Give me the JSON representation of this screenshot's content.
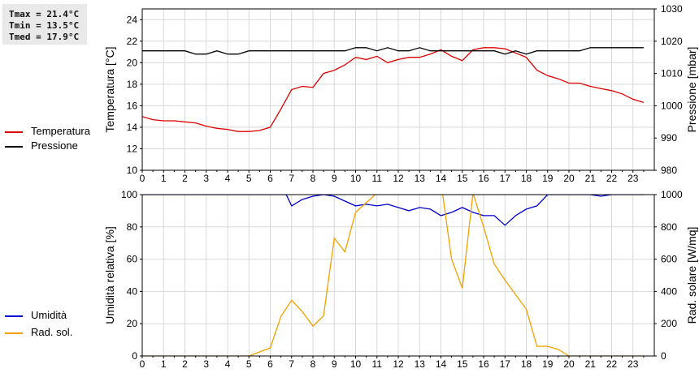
{
  "stats": {
    "tmax": "Tmax = 21.4°C",
    "tmin": "Tmin = 13.5°C",
    "tmed": "Tmed = 17.9°C"
  },
  "legend_top": [
    {
      "label": "Temperatura",
      "color": "#dd0000"
    },
    {
      "label": "Pressione",
      "color": "#000000"
    }
  ],
  "legend_bottom": [
    {
      "label": "Umidità",
      "color": "#0000cc"
    },
    {
      "label": "Rad. sol.",
      "color": "#f5a000"
    }
  ],
  "chart_data": [
    {
      "type": "line",
      "xlim": [
        0,
        24
      ],
      "x_ticks": [
        "0",
        "1",
        "2",
        "3",
        "4",
        "5",
        "6",
        "7",
        "8",
        "9",
        "10",
        "11",
        "12",
        "13",
        "14",
        "15",
        "16",
        "17",
        "18",
        "19",
        "20",
        "21",
        "22",
        "23"
      ],
      "ylabel_left": "Temperatura [°C]",
      "ylim_left": [
        10,
        25
      ],
      "yticks_left": [
        "10",
        "12",
        "14",
        "16",
        "18",
        "20",
        "22",
        "24"
      ],
      "ylabel_right": "Pressione [mbar]",
      "ylim_right": [
        980,
        1030
      ],
      "yticks_right": [
        "980",
        "990",
        "1000",
        "1010",
        "1020",
        "1030"
      ],
      "grid": true,
      "series": [
        {
          "name": "Temperatura",
          "axis": "left",
          "color": "#dd0000",
          "x": [
            0,
            0.5,
            1,
            1.5,
            2,
            2.5,
            3,
            3.5,
            4,
            4.5,
            5,
            5.5,
            6,
            6.5,
            7,
            7.5,
            8,
            8.5,
            9,
            9.5,
            10,
            10.5,
            11,
            11.5,
            12,
            12.5,
            13,
            13.5,
            14,
            14.5,
            15,
            15.5,
            16,
            16.5,
            17,
            17.5,
            18,
            18.5,
            19,
            19.5,
            20,
            20.5,
            21,
            21.5,
            22,
            22.5,
            23,
            23.5
          ],
          "y": [
            15.0,
            14.7,
            14.6,
            14.6,
            14.5,
            14.4,
            14.1,
            13.9,
            13.8,
            13.6,
            13.6,
            13.7,
            14.0,
            15.7,
            17.5,
            17.8,
            17.7,
            19.0,
            19.3,
            19.8,
            20.5,
            20.3,
            20.6,
            20.0,
            20.3,
            20.5,
            20.5,
            20.8,
            21.2,
            20.6,
            20.2,
            21.2,
            21.4,
            21.4,
            21.3,
            20.9,
            20.5,
            19.3,
            18.8,
            18.5,
            18.1,
            18.1,
            17.8,
            17.6,
            17.4,
            17.1,
            16.6,
            16.3
          ]
        },
        {
          "name": "Pressione",
          "axis": "right",
          "color": "#000000",
          "x": [
            0,
            0.5,
            1,
            1.5,
            2,
            2.5,
            3,
            3.5,
            4,
            4.5,
            5,
            5.5,
            6,
            6.5,
            7,
            7.5,
            8,
            8.5,
            9,
            9.5,
            10,
            10.5,
            11,
            11.5,
            12,
            12.5,
            13,
            13.5,
            14,
            14.5,
            15,
            15.5,
            16,
            16.5,
            17,
            17.5,
            18,
            18.5,
            19,
            19.5,
            20,
            20.5,
            21,
            21.5,
            22,
            22.5,
            23,
            23.5
          ],
          "y": [
            1017,
            1017,
            1017,
            1017,
            1017,
            1016,
            1016,
            1017,
            1016,
            1016,
            1017,
            1017,
            1017,
            1017,
            1017,
            1017,
            1017,
            1017,
            1017,
            1017,
            1018,
            1018,
            1017,
            1018,
            1017,
            1017,
            1018,
            1017,
            1017,
            1017,
            1017,
            1017,
            1017,
            1017,
            1016,
            1017,
            1016,
            1017,
            1017,
            1017,
            1017,
            1017,
            1018,
            1018,
            1018,
            1018,
            1018,
            1018
          ]
        }
      ]
    },
    {
      "type": "line",
      "xlim": [
        0,
        24
      ],
      "x_ticks": [
        "0",
        "1",
        "2",
        "3",
        "4",
        "5",
        "6",
        "7",
        "8",
        "9",
        "10",
        "11",
        "12",
        "13",
        "14",
        "15",
        "16",
        "17",
        "18",
        "19",
        "20",
        "21",
        "22",
        "23"
      ],
      "ylabel_left": "Umidità relativa [%]",
      "ylim_left": [
        0,
        100
      ],
      "yticks_left": [
        "0",
        "20",
        "40",
        "60",
        "80",
        "100"
      ],
      "ylabel_right": "Rad. solare [W/mq]",
      "ylim_right": [
        0,
        1000
      ],
      "yticks_right": [
        "0",
        "200",
        "400",
        "600",
        "800",
        "1000"
      ],
      "grid": true,
      "series": [
        {
          "name": "Umidità",
          "axis": "left",
          "color": "#0000cc",
          "x": [
            0,
            0.5,
            1,
            1.5,
            2,
            2.5,
            3,
            3.5,
            4,
            4.5,
            5,
            5.5,
            6,
            6.5,
            6.75,
            7,
            7.5,
            8,
            8.5,
            9,
            9.5,
            10,
            10.5,
            11,
            11.5,
            12,
            12.5,
            13,
            13.5,
            14,
            14.5,
            15,
            15.5,
            16,
            16.5,
            17,
            17.5,
            18,
            18.5,
            19,
            19.5,
            20,
            20.5,
            21,
            21.5,
            22,
            22.5,
            23,
            23.5
          ],
          "y": [
            100,
            100,
            100,
            100,
            100,
            100,
            100,
            100,
            100,
            100,
            100,
            100,
            100,
            100,
            100,
            93,
            97,
            99,
            100,
            99,
            96,
            93,
            94,
            93,
            94,
            92,
            90,
            92,
            91,
            87,
            89,
            92,
            89,
            87,
            87,
            81,
            87,
            91,
            93,
            100,
            100,
            100,
            100,
            100,
            99,
            100,
            100,
            100,
            100
          ]
        },
        {
          "name": "Rad. sol.",
          "axis": "right",
          "color": "#f5a000",
          "x": [
            0,
            0.5,
            1,
            1.5,
            2,
            2.5,
            3,
            3.5,
            4,
            4.5,
            5,
            5.5,
            6,
            6.5,
            7,
            7.5,
            8,
            8.5,
            9,
            9.5,
            10,
            10.5,
            11,
            11.5,
            12,
            12.5,
            13,
            13.5,
            14,
            14.5,
            15,
            15.5,
            16,
            16.5,
            17,
            17.5,
            18,
            18.5,
            19,
            19.5,
            20,
            20.5,
            21,
            21.5,
            22,
            22.5,
            23,
            23.5
          ],
          "y": [
            0,
            0,
            0,
            0,
            0,
            0,
            0,
            0,
            0,
            0,
            0,
            25,
            50,
            245,
            345,
            275,
            185,
            250,
            730,
            645,
            890,
            950,
            1010,
            1050,
            1080,
            1100,
            1120,
            1100,
            1080,
            600,
            420,
            1010,
            800,
            570,
            470,
            380,
            290,
            60,
            60,
            40,
            0,
            0,
            0,
            0,
            0,
            0,
            0,
            0
          ]
        }
      ]
    }
  ]
}
